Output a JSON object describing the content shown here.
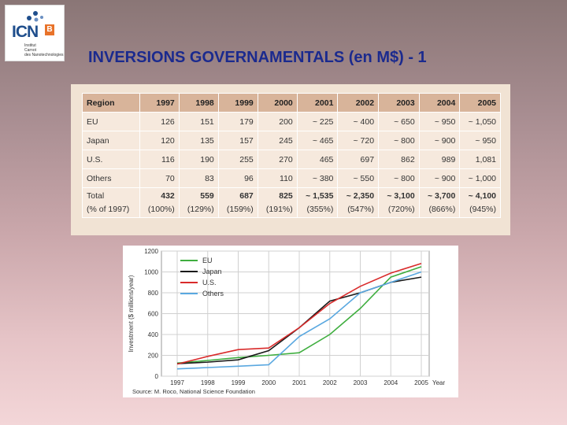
{
  "logo": {
    "text": "ICN",
    "badge": "B",
    "subtext": [
      "Institut",
      "Carnot",
      "des Nanotechnologies"
    ]
  },
  "title": "INVERSIONS GOVERNAMENTALS (en M$) - 1",
  "table": {
    "headers": [
      "Region",
      "1997",
      "1998",
      "1999",
      "2000",
      "2001",
      "2002",
      "2003",
      "2004",
      "2005"
    ],
    "rows": [
      {
        "label": "EU",
        "values": [
          "126",
          "151",
          "179",
          "200",
          "~ 225",
          "~ 400",
          "~ 650",
          "~ 950",
          "~ 1,050"
        ]
      },
      {
        "label": "Japan",
        "values": [
          "120",
          "135",
          "157",
          "245",
          "~ 465",
          "~ 720",
          "~ 800",
          "~ 900",
          "~ 950"
        ]
      },
      {
        "label": "U.S.",
        "values": [
          "116",
          "190",
          "255",
          "270",
          "465",
          "697",
          "862",
          "989",
          "1,081"
        ]
      },
      {
        "label": "Others",
        "values": [
          "70",
          "83",
          "96",
          "110",
          "~ 380",
          "~ 550",
          "~ 800",
          "~ 900",
          "~ 1,000"
        ]
      }
    ],
    "total": {
      "label": "Total",
      "sublabel": "(% of 1997)",
      "values": [
        "432",
        "559",
        "687",
        "825",
        "~ 1,535",
        "~ 2,350",
        "~ 3,100",
        "~ 3,700",
        "~ 4,100"
      ],
      "percents": [
        "(100%)",
        "(129%)",
        "(159%)",
        "(191%)",
        "(355%)",
        "(547%)",
        "(720%)",
        "(866%)",
        "(945%)"
      ]
    }
  },
  "chart_data": {
    "type": "line",
    "x": [
      1997,
      1998,
      1999,
      2000,
      2001,
      2002,
      2003,
      2004,
      2005
    ],
    "xlabel": "Year",
    "ylabel": "Investment ($ millions/year)",
    "ylim": [
      0,
      1200
    ],
    "yticks": [
      0,
      200,
      400,
      600,
      800,
      1000,
      1200
    ],
    "grid": true,
    "legend_position": "top-left",
    "source": "Source: M. Roco, National Science Foundation",
    "series": [
      {
        "name": "EU",
        "color": "#3fae3f",
        "values": [
          126,
          151,
          179,
          200,
          225,
          400,
          650,
          950,
          1050
        ]
      },
      {
        "name": "Japan",
        "color": "#1a1a1a",
        "values": [
          120,
          135,
          157,
          245,
          465,
          720,
          800,
          900,
          950
        ]
      },
      {
        "name": "U.S.",
        "color": "#d92b2b",
        "values": [
          116,
          190,
          255,
          270,
          465,
          697,
          862,
          989,
          1081
        ]
      },
      {
        "name": "Others",
        "color": "#5aa8e0",
        "values": [
          70,
          83,
          96,
          110,
          380,
          550,
          800,
          900,
          1000
        ]
      }
    ]
  }
}
